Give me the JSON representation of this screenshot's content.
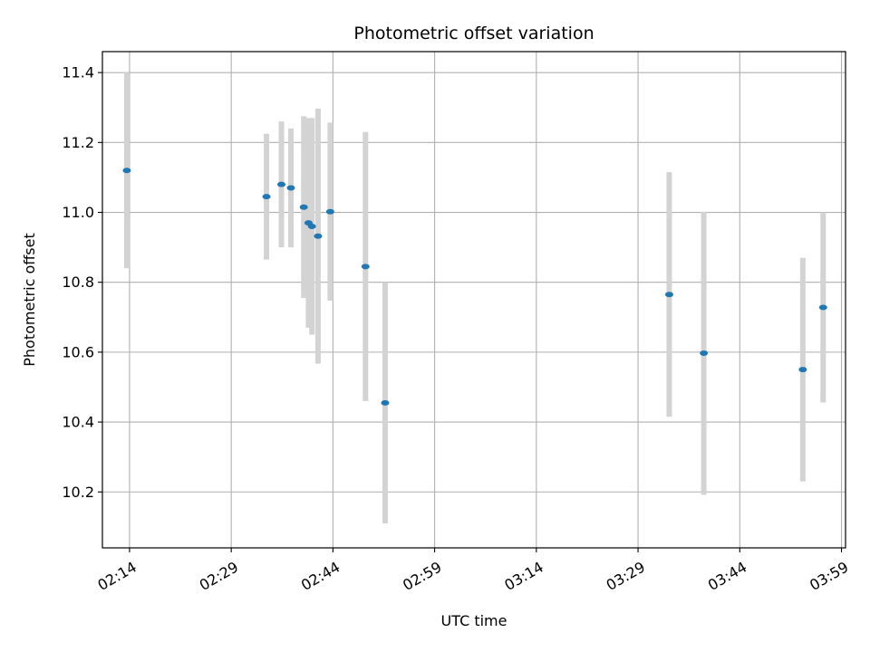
{
  "chart_data": {
    "type": "scatter",
    "title": "Photometric offset variation",
    "xlabel": "UTC time",
    "ylabel": "Photometric offset",
    "x_range": [
      "02:10",
      "03:59.6"
    ],
    "ylim": [
      10.04,
      11.46
    ],
    "grid": true,
    "x_ticks": [
      "02:14",
      "02:29",
      "02:44",
      "02:59",
      "03:14",
      "03:29",
      "03:44",
      "03:59"
    ],
    "y_ticks": [
      10.2,
      10.4,
      10.6,
      10.8,
      11.0,
      11.2,
      11.4
    ],
    "y_tick_labels": [
      "10.2",
      "10.4",
      "10.6",
      "10.8",
      "11.0",
      "11.2",
      "11.4"
    ],
    "colors": {
      "marker": "#1f77b4",
      "errorbar": "#d3d3d3",
      "grid": "#b0b0b0"
    },
    "series": [
      {
        "points": [
          {
            "x": "02:13.6",
            "y": 11.12,
            "err": 0.28
          },
          {
            "x": "02:34.2",
            "y": 11.045,
            "err": 0.18
          },
          {
            "x": "02:36.4",
            "y": 11.08,
            "err": 0.18
          },
          {
            "x": "02:37.8",
            "y": 11.07,
            "err": 0.17
          },
          {
            "x": "02:39.7",
            "y": 11.015,
            "err": 0.26
          },
          {
            "x": "02:40.4",
            "y": 10.97,
            "err": 0.3
          },
          {
            "x": "02:40.9",
            "y": 10.96,
            "err": 0.31
          },
          {
            "x": "02:41.8",
            "y": 10.932,
            "err": 0.365
          },
          {
            "x": "02:43.6",
            "y": 11.002,
            "err": 0.255
          },
          {
            "x": "02:48.8",
            "y": 10.845,
            "err": 0.385
          },
          {
            "x": "02:51.7",
            "y": 10.455,
            "err": 0.345
          },
          {
            "x": "03:33.6",
            "y": 10.765,
            "err": 0.35
          },
          {
            "x": "03:38.7",
            "y": 10.597,
            "err": 0.405
          },
          {
            "x": "03:53.3",
            "y": 10.55,
            "err": 0.32
          },
          {
            "x": "03:56.3",
            "y": 10.728,
            "err": 0.272
          }
        ]
      }
    ]
  }
}
